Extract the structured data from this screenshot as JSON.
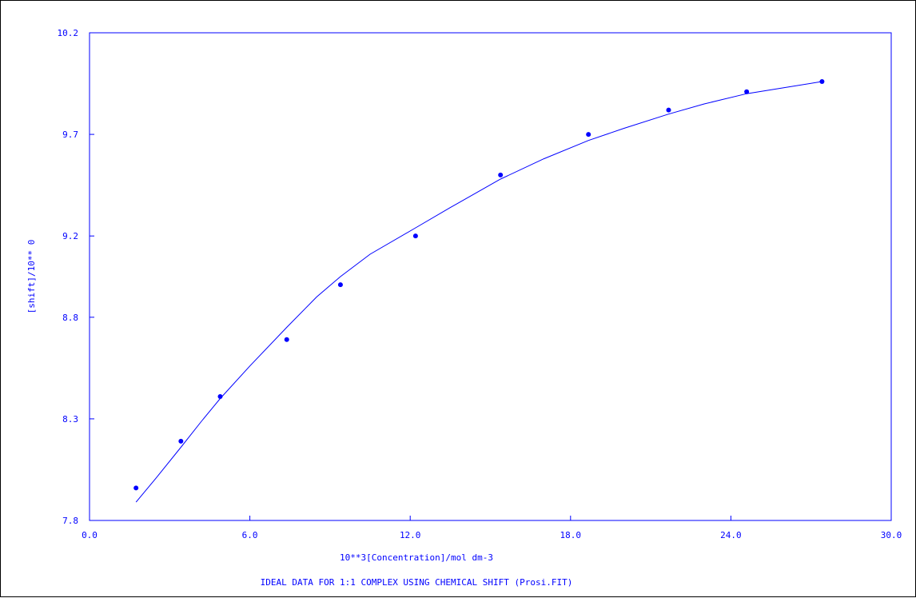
{
  "chart_data": {
    "type": "scatter",
    "title": "IDEAL DATA FOR 1:1 COMPLEX USING CHEMICAL SHIFT (Prosi.FIT)",
    "xlabel": "10**3[Concentration]/mol dm-3",
    "ylabel": "[shift]/10** 0",
    "xlim": [
      0.0,
      30.0
    ],
    "ylim": [
      7.8,
      10.2
    ],
    "x_ticks": [
      0.0,
      6.0,
      12.0,
      18.0,
      24.0,
      30.0
    ],
    "x_tick_labels": [
      "0.0",
      "6.0",
      "12.0",
      "18.0",
      "24.0",
      "30.0"
    ],
    "y_ticks": [
      7.8,
      8.3,
      8.8,
      9.2,
      9.7,
      10.2
    ],
    "y_tick_labels": [
      "7.8",
      "8.3",
      "8.8",
      "9.2",
      "9.7",
      "10.2"
    ],
    "grid": false,
    "color": "#0000ff",
    "series": [
      {
        "kind": "points",
        "x": [
          1.74,
          3.42,
          4.89,
          7.38,
          9.39,
          12.2,
          15.38,
          18.67,
          21.67,
          24.59,
          27.41
        ],
        "y": [
          7.96,
          8.19,
          8.41,
          8.69,
          8.96,
          9.2,
          9.5,
          9.7,
          9.82,
          9.91,
          9.96
        ]
      },
      {
        "kind": "fit-line",
        "x": [
          1.74,
          2.5,
          3.42,
          4.2,
          4.89,
          6.0,
          7.38,
          8.5,
          9.39,
          10.5,
          12.2,
          13.5,
          15.38,
          17.0,
          18.67,
          20.0,
          21.67,
          23.0,
          24.59,
          26.0,
          27.41
        ],
        "y": [
          7.89,
          8.01,
          8.16,
          8.29,
          8.4,
          8.56,
          8.75,
          8.9,
          9.0,
          9.11,
          9.24,
          9.34,
          9.48,
          9.58,
          9.67,
          9.73,
          9.8,
          9.85,
          9.9,
          9.93,
          9.96
        ]
      }
    ]
  }
}
